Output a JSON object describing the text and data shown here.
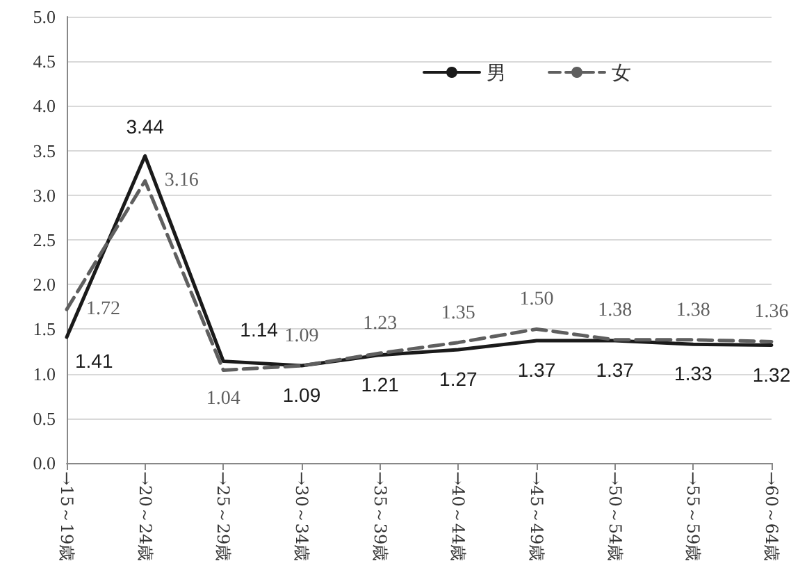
{
  "chart_data": {
    "type": "line",
    "categories": [
      "→15～19歳",
      "→20～24歳",
      "→25～29歳",
      "→30～34歳",
      "→35～39歳",
      "→40～44歳",
      "→45～49歳",
      "→50～54歳",
      "→55～59歳",
      "→60～64歳"
    ],
    "series": [
      {
        "name": "男",
        "color": "#1a1a1a",
        "line_style": "solid",
        "values": [
          1.41,
          3.44,
          1.14,
          1.09,
          1.21,
          1.27,
          1.37,
          1.37,
          1.33,
          1.32
        ],
        "value_labels": [
          "1.41",
          "3.44",
          "1.14",
          "1.09",
          "1.21",
          "1.27",
          "1.37",
          "1.37",
          "1.33",
          "1.32"
        ]
      },
      {
        "name": "女",
        "color": "#5f5f5f",
        "line_style": "dashed",
        "values": [
          1.72,
          3.16,
          1.04,
          1.09,
          1.23,
          1.35,
          1.5,
          1.38,
          1.38,
          1.36
        ],
        "value_labels": [
          "1.72",
          "3.16",
          "1.04",
          "1.09",
          "1.23",
          "1.35",
          "1.50",
          "1.38",
          "1.38",
          "1.36"
        ]
      }
    ],
    "ylim": [
      0,
      5
    ],
    "yticks": [
      {
        "value": 0,
        "label": "0.0"
      },
      {
        "value": 0.5,
        "label": "0.5"
      },
      {
        "value": 1,
        "label": "1.0"
      },
      {
        "value": 1.5,
        "label": "1.5"
      },
      {
        "value": 2,
        "label": "2.0"
      },
      {
        "value": 2.5,
        "label": "2.5"
      },
      {
        "value": 3,
        "label": "3.0"
      },
      {
        "value": 3.5,
        "label": "3.5"
      },
      {
        "value": 4,
        "label": "4.0"
      },
      {
        "value": 4.5,
        "label": "4.5"
      },
      {
        "value": 5,
        "label": "5.0"
      }
    ],
    "grid": "y",
    "legend": "top right",
    "marker": "none"
  }
}
